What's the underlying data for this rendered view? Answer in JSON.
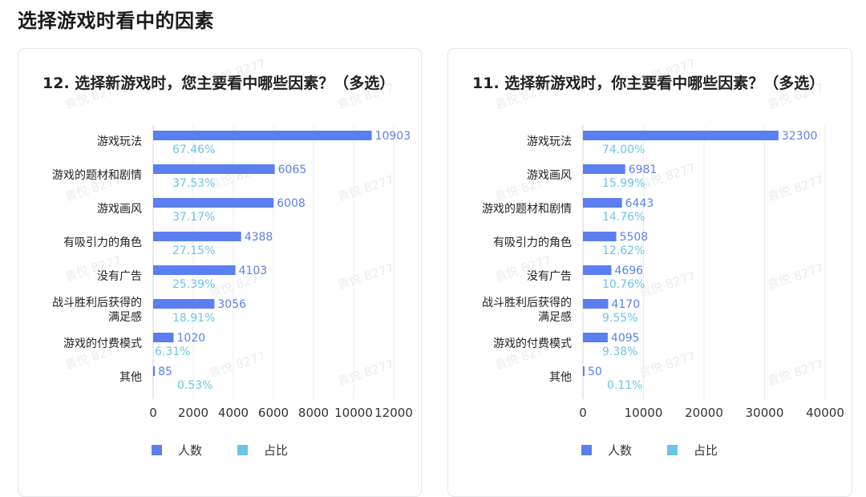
{
  "page": {
    "title": "选择游戏时看中的因素"
  },
  "colors": {
    "count_bar": "#5b7ff0",
    "ratio": "#6cc4ea",
    "axis": "#cfd3d8",
    "tick_text": "#333333"
  },
  "chart_data": [
    {
      "type": "bar",
      "orientation": "horizontal",
      "title": "12. 选择新游戏时，您主要看中哪些因素？（多选）",
      "categories": [
        "游戏玩法",
        "游戏的题材和剧情",
        "游戏画风",
        "有吸引力的角色",
        "没有广告",
        "战斗胜利后获得的满足感",
        "游戏的付费模式",
        "其他"
      ],
      "series": [
        {
          "name": "人数",
          "values": [
            10903,
            6065,
            6008,
            4388,
            4103,
            3056,
            1020,
            85
          ]
        },
        {
          "name": "占比",
          "values": [
            "67.46%",
            "37.53%",
            "37.17%",
            "27.15%",
            "25.39%",
            "18.91%",
            "6.31%",
            "0.53%"
          ]
        }
      ],
      "xlim": [
        0,
        12000
      ],
      "xticks": [
        0,
        2000,
        4000,
        6000,
        8000,
        10000,
        12000
      ],
      "legend_position": "bottom-left"
    },
    {
      "type": "bar",
      "orientation": "horizontal",
      "title": "11. 选择新游戏时，你主要看中哪些因素？（多选）",
      "categories": [
        "游戏玩法",
        "游戏画风",
        "游戏的题材和剧情",
        "有吸引力的角色",
        "没有广告",
        "战斗胜利后获得的满足感",
        "游戏的付费模式",
        "其他"
      ],
      "series": [
        {
          "name": "人数",
          "values": [
            32300,
            6981,
            6443,
            5508,
            4696,
            4170,
            4095,
            50
          ]
        },
        {
          "name": "占比",
          "values": [
            "74.00%",
            "15.99%",
            "14.76%",
            "12.62%",
            "10.76%",
            "9.55%",
            "9.38%",
            "0.11%"
          ]
        }
      ],
      "xlim": [
        0,
        40000
      ],
      "xticks": [
        0,
        10000,
        20000,
        30000,
        40000
      ],
      "legend_position": "bottom-left"
    }
  ],
  "watermark": {
    "text": "袁悦 8277"
  }
}
